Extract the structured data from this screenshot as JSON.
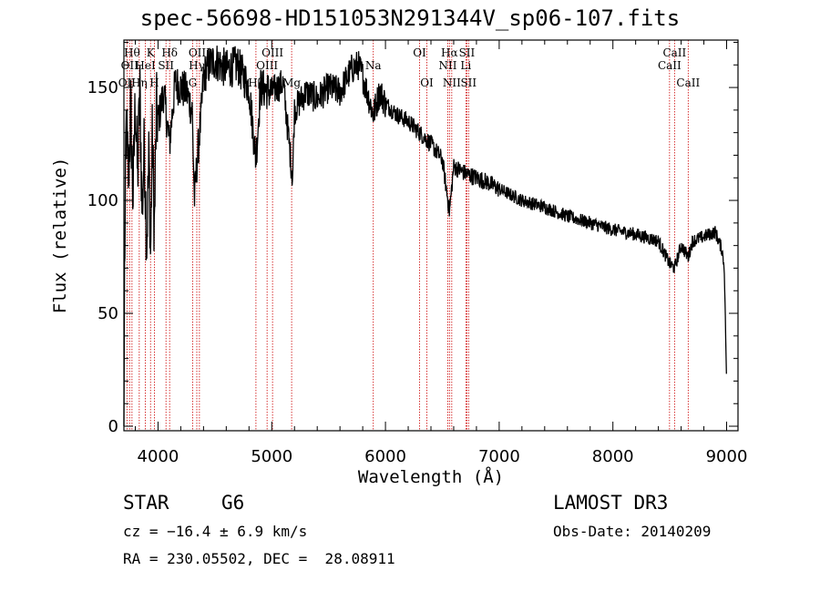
{
  "title": "spec-56698-HD151053N291344V_sp06-107.fits",
  "info": {
    "class": "STAR",
    "subclass": "G6",
    "survey": "LAMOST DR3",
    "cz": "cz = −16.4 ± 6.9 km/s",
    "obs_date": "Obs-Date: 20140209",
    "radec": "RA = 230.05502, DEC =  28.08911"
  },
  "chart_data": {
    "type": "line",
    "title": "spec-56698-HD151053N291344V_sp06-107.fits",
    "xlabel": "Wavelength (Å)",
    "ylabel": "Flux (relative)",
    "xlim": [
      3700,
      9100
    ],
    "ylim": [
      -2,
      171
    ],
    "xticks": [
      4000,
      5000,
      6000,
      7000,
      8000,
      9000
    ],
    "yticks": [
      0,
      50,
      100,
      150
    ],
    "line_color": "#000000",
    "marker_color": "#cc0000",
    "spectrum_anchors": [
      [
        3700,
        0
      ],
      [
        3705,
        62
      ],
      [
        3720,
        135
      ],
      [
        3740,
        110
      ],
      [
        3760,
        140
      ],
      [
        3780,
        100
      ],
      [
        3800,
        145
      ],
      [
        3820,
        110
      ],
      [
        3840,
        150
      ],
      [
        3860,
        95
      ],
      [
        3880,
        125
      ],
      [
        3900,
        80
      ],
      [
        3920,
        120
      ],
      [
        3935,
        75
      ],
      [
        3950,
        130
      ],
      [
        3968,
        85
      ],
      [
        3985,
        140
      ],
      [
        4000,
        135
      ],
      [
        4050,
        148
      ],
      [
        4101,
        125
      ],
      [
        4150,
        152
      ],
      [
        4200,
        150
      ],
      [
        4250,
        148
      ],
      [
        4300,
        140
      ],
      [
        4320,
        100
      ],
      [
        4340,
        115
      ],
      [
        4383,
        140
      ],
      [
        4400,
        155
      ],
      [
        4450,
        160
      ],
      [
        4500,
        162
      ],
      [
        4600,
        158
      ],
      [
        4700,
        160
      ],
      [
        4800,
        150
      ],
      [
        4861,
        118
      ],
      [
        4900,
        150
      ],
      [
        5000,
        148
      ],
      [
        5100,
        152
      ],
      [
        5183,
        110
      ],
      [
        5200,
        140
      ],
      [
        5300,
        148
      ],
      [
        5400,
        145
      ],
      [
        5500,
        150
      ],
      [
        5600,
        148
      ],
      [
        5700,
        158
      ],
      [
        5760,
        160
      ],
      [
        5800,
        155
      ],
      [
        5893,
        138
      ],
      [
        5950,
        148
      ],
      [
        6000,
        143
      ],
      [
        6100,
        138
      ],
      [
        6200,
        135
      ],
      [
        6300,
        130
      ],
      [
        6400,
        125
      ],
      [
        6500,
        118
      ],
      [
        6563,
        95
      ],
      [
        6600,
        115
      ],
      [
        6700,
        112
      ],
      [
        6800,
        110
      ],
      [
        6900,
        108
      ],
      [
        7000,
        105
      ],
      [
        7200,
        100
      ],
      [
        7400,
        97
      ],
      [
        7600,
        93
      ],
      [
        7800,
        90
      ],
      [
        8000,
        87
      ],
      [
        8200,
        85
      ],
      [
        8400,
        82
      ],
      [
        8498,
        72
      ],
      [
        8542,
        70
      ],
      [
        8600,
        80
      ],
      [
        8662,
        75
      ],
      [
        8700,
        82
      ],
      [
        8800,
        84
      ],
      [
        8900,
        86
      ],
      [
        8960,
        78
      ],
      [
        8980,
        70
      ],
      [
        9000,
        18
      ]
    ],
    "lines": [
      {
        "wavelength": 3727,
        "label": "OII",
        "row": 3
      },
      {
        "wavelength": 3750,
        "label": "OII",
        "row": 2
      },
      {
        "wavelength": 3771,
        "label": "Hθ",
        "row": 1
      },
      {
        "wavelength": 3835,
        "label": "Hη",
        "row": 3
      },
      {
        "wavelength": 3889,
        "label": "HeI",
        "row": 2
      },
      {
        "wavelength": 3934,
        "label": "K",
        "row": 1
      },
      {
        "wavelength": 3968,
        "label": "H",
        "row": 3
      },
      {
        "wavelength": 4070,
        "label": "SII",
        "row": 2
      },
      {
        "wavelength": 4102,
        "label": "Hδ",
        "row": 1
      },
      {
        "wavelength": 4304,
        "label": "G",
        "row": 3
      },
      {
        "wavelength": 4341,
        "label": "Hγ",
        "row": 2
      },
      {
        "wavelength": 4364,
        "label": "OIII",
        "row": 1
      },
      {
        "wavelength": 4861,
        "label": "Hβ",
        "row": 3
      },
      {
        "wavelength": 4959,
        "label": "OIII",
        "row": 2
      },
      {
        "wavelength": 5007,
        "label": "OIII",
        "row": 1
      },
      {
        "wavelength": 5175,
        "label": "Mg",
        "row": 3
      },
      {
        "wavelength": 5893,
        "label": "Na",
        "row": 2
      },
      {
        "wavelength": 6300,
        "label": "OI",
        "row": 1
      },
      {
        "wavelength": 6364,
        "label": "OI",
        "row": 3
      },
      {
        "wavelength": 6548,
        "label": "NII",
        "row": 2
      },
      {
        "wavelength": 6563,
        "label": "Hα",
        "row": 1
      },
      {
        "wavelength": 6583,
        "label": "NII",
        "row": 3
      },
      {
        "wavelength": 6707,
        "label": "Li",
        "row": 2
      },
      {
        "wavelength": 6716,
        "label": "SII",
        "row": 1
      },
      {
        "wavelength": 6731,
        "label": "SII",
        "row": 3
      },
      {
        "wavelength": 8498,
        "label": "CaII",
        "row": 2
      },
      {
        "wavelength": 8542,
        "label": "CaII",
        "row": 1
      },
      {
        "wavelength": 8662,
        "label": "CaII",
        "row": 3
      }
    ]
  }
}
